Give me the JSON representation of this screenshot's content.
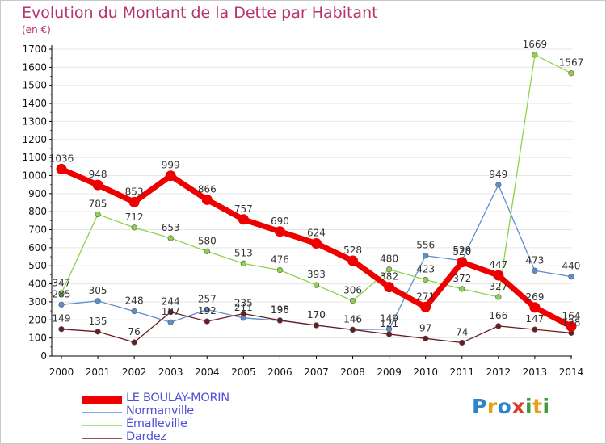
{
  "colors": {
    "title": "#b5346e",
    "axis": "#000000",
    "grid": "#e6e6e6",
    "legend_text": "#5050d8"
  },
  "logo_text": "Proxiti",
  "chart_data": {
    "type": "line",
    "title": "Evolution du Montant de la Dette par Habitant",
    "subtitle": "(en €)",
    "xlabel": "",
    "ylabel": "",
    "x": [
      "2000",
      "2001",
      "2002",
      "2003",
      "2004",
      "2005",
      "2006",
      "2007",
      "2008",
      "2009",
      "2010",
      "2011",
      "2012",
      "2013",
      "2014"
    ],
    "ylim": [
      0,
      1700
    ],
    "yticks": [
      0,
      100,
      200,
      300,
      400,
      500,
      600,
      700,
      800,
      900,
      1000,
      1100,
      1200,
      1300,
      1400,
      1500,
      1600,
      1700
    ],
    "grid": true,
    "legend_position": "bottom-left",
    "series": [
      {
        "name": "Normanville",
        "color": "#5b8fd0",
        "width": 1.3,
        "marker": 3.3,
        "values": [
          285,
          305,
          248,
          187,
          257,
          211,
          196,
          170,
          146,
          149,
          556,
          529,
          949,
          473,
          440
        ],
        "labels": [
          "285",
          "305",
          "248",
          "187",
          "257",
          "211",
          "196",
          "170",
          "146",
          "149",
          "556",
          "529",
          "949",
          "473",
          "440"
        ]
      },
      {
        "name": "Émalleville",
        "color": "#8ed24a",
        "width": 1.3,
        "marker": 3.3,
        "values": [
          347,
          785,
          712,
          653,
          580,
          513,
          476,
          393,
          306,
          480,
          423,
          372,
          327,
          1669,
          1567
        ],
        "labels": [
          "347",
          "785",
          "712",
          "653",
          "580",
          "513",
          "476",
          "393",
          "306",
          "480",
          "423",
          "372",
          "327",
          "1669",
          "1567"
        ]
      },
      {
        "name": "Dardez",
        "color": "#6b1c22",
        "width": 1.3,
        "marker": 3.3,
        "values": [
          149,
          135,
          76,
          244,
          192,
          235,
          198,
          170,
          146,
          121,
          97,
          74,
          166,
          147,
          128
        ],
        "labels": [
          "149",
          "135",
          "76",
          "244",
          "192",
          "235",
          "198",
          "170",
          "146",
          "121",
          "97",
          "74",
          "166",
          "147",
          "128"
        ]
      },
      {
        "name": "LE BOULAY-MORIN",
        "color": "#ee0000",
        "width": 7,
        "marker": 6.5,
        "values": [
          1036,
          948,
          853,
          999,
          866,
          757,
          690,
          624,
          528,
          382,
          271,
          520,
          447,
          269,
          164
        ],
        "labels": [
          "1036",
          "948",
          "853",
          "999",
          "866",
          "757",
          "690",
          "624",
          "528",
          "382",
          "271",
          "520",
          "447",
          "269",
          "164"
        ]
      }
    ],
    "legend_order": [
      "LE BOULAY-MORIN",
      "Normanville",
      "Émalleville",
      "Dardez"
    ]
  }
}
